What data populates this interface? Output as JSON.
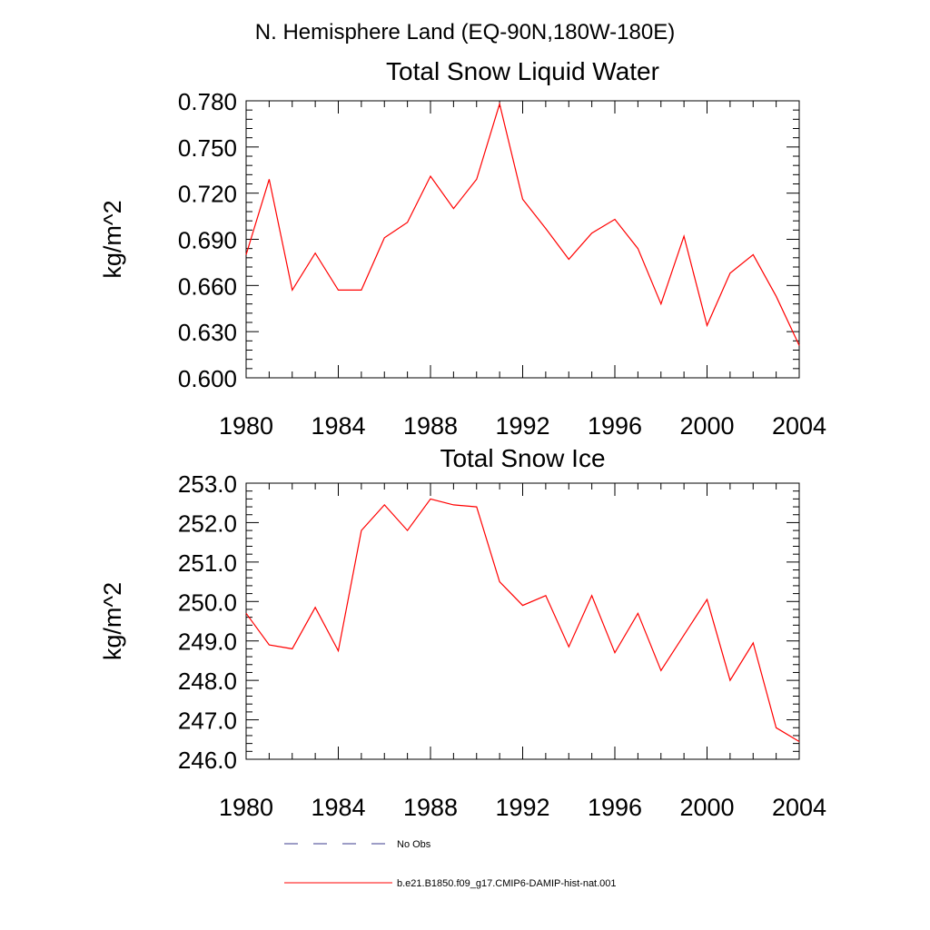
{
  "figure": {
    "suptitle": "N. Hemisphere Land (EQ-90N,180W-180E)"
  },
  "legend": {
    "items": [
      {
        "label": "No Obs",
        "color": "#3b3b8c",
        "dash": true
      },
      {
        "label": "b.e21.B1850.f09_g17.CMIP6-DAMIP-hist-nat.001",
        "color": "#ff0000",
        "dash": false
      }
    ]
  },
  "chart_data": [
    {
      "type": "line",
      "title": "Total Snow Liquid Water",
      "ylabel": "kg/m^2",
      "xlabel": "",
      "xlim": [
        1980,
        2004
      ],
      "ylim": [
        0.6,
        0.78
      ],
      "xticks": [
        1980,
        1984,
        1988,
        1992,
        1996,
        2000,
        2004
      ],
      "xtick_labels": [
        "1980",
        "1984",
        "1988",
        "1992",
        "1996",
        "2000",
        "2004"
      ],
      "yticks": [
        0.6,
        0.63,
        0.66,
        0.69,
        0.72,
        0.75,
        0.78
      ],
      "ytick_labels": [
        "0.600",
        "0.630",
        "0.660",
        "0.690",
        "0.720",
        "0.750",
        "0.780"
      ],
      "grid": false,
      "x": [
        1980,
        1981,
        1982,
        1983,
        1984,
        1985,
        1986,
        1987,
        1988,
        1989,
        1990,
        1991,
        1992,
        1993,
        1994,
        1995,
        1996,
        1997,
        1998,
        1999,
        2000,
        2001,
        2002,
        2003,
        2004
      ],
      "series": [
        {
          "name": "b.e21.B1850.f09_g17.CMIP6-DAMIP-hist-nat.001",
          "color": "#ff0000",
          "values": [
            0.68,
            0.729,
            0.657,
            0.681,
            0.657,
            0.657,
            0.691,
            0.701,
            0.731,
            0.71,
            0.729,
            0.778,
            0.716,
            0.697,
            0.677,
            0.694,
            0.703,
            0.684,
            0.648,
            0.692,
            0.634,
            0.668,
            0.68,
            0.653,
            0.621
          ]
        }
      ]
    },
    {
      "type": "line",
      "title": "Total Snow Ice",
      "ylabel": "kg/m^2",
      "xlabel": "",
      "xlim": [
        1980,
        2004
      ],
      "ylim": [
        246.0,
        253.0
      ],
      "xticks": [
        1980,
        1984,
        1988,
        1992,
        1996,
        2000,
        2004
      ],
      "xtick_labels": [
        "1980",
        "1984",
        "1988",
        "1992",
        "1996",
        "2000",
        "2004"
      ],
      "yticks": [
        246.0,
        247.0,
        248.0,
        249.0,
        250.0,
        251.0,
        252.0,
        253.0
      ],
      "ytick_labels": [
        "246.0",
        "247.0",
        "248.0",
        "249.0",
        "250.0",
        "251.0",
        "252.0",
        "253.0"
      ],
      "grid": false,
      "x": [
        1980,
        1981,
        1982,
        1983,
        1984,
        1985,
        1986,
        1987,
        1988,
        1989,
        1990,
        1991,
        1992,
        1993,
        1994,
        1995,
        1996,
        1997,
        1998,
        1999,
        2000,
        2001,
        2002,
        2003,
        2004
      ],
      "series": [
        {
          "name": "b.e21.B1850.f09_g17.CMIP6-DAMIP-hist-nat.001",
          "color": "#ff0000",
          "values": [
            249.7,
            248.9,
            248.8,
            249.85,
            248.75,
            251.8,
            252.45,
            251.8,
            252.6,
            252.45,
            252.4,
            250.5,
            249.9,
            250.15,
            248.85,
            250.15,
            248.7,
            249.7,
            248.25,
            249.15,
            250.05,
            248.0,
            248.95,
            246.8,
            246.45
          ]
        }
      ]
    }
  ]
}
